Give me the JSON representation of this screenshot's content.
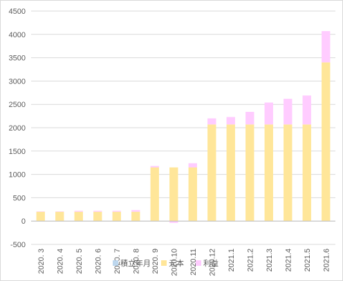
{
  "chart_data": {
    "type": "bar",
    "stacked": true,
    "categories": [
      "2020. 3",
      "2020. 4",
      "2020. 5",
      "2020. 6",
      "2020. 7",
      "2020. 8",
      "2020. 9",
      "2020.10",
      "2020.11",
      "2020.12",
      "2021.1",
      "2021.2",
      "2021.3",
      "2021.4",
      "2021.5",
      "2021.6"
    ],
    "series": [
      {
        "name": "積立年月",
        "color": "#bdd7ee",
        "values": [
          0,
          0,
          0,
          0,
          0,
          0,
          0,
          0,
          0,
          0,
          0,
          0,
          0,
          0,
          0,
          0
        ]
      },
      {
        "name": "元本",
        "color": "#ffe699",
        "values": [
          200,
          200,
          200,
          200,
          200,
          200,
          1150,
          1150,
          1150,
          2070,
          2070,
          2070,
          2070,
          2070,
          2070,
          3400
        ]
      },
      {
        "name": "利益",
        "color": "#ffccff",
        "values": [
          8,
          8,
          20,
          20,
          20,
          35,
          30,
          -40,
          90,
          130,
          160,
          270,
          470,
          550,
          620,
          670
        ]
      }
    ],
    "ylim": [
      -500,
      4500
    ],
    "yticks": [
      -500,
      0,
      500,
      1000,
      1500,
      2000,
      2500,
      3000,
      3500,
      4000,
      4500
    ],
    "grid": true,
    "legend": "bottom",
    "title": "",
    "xlabel": "",
    "ylabel": ""
  }
}
